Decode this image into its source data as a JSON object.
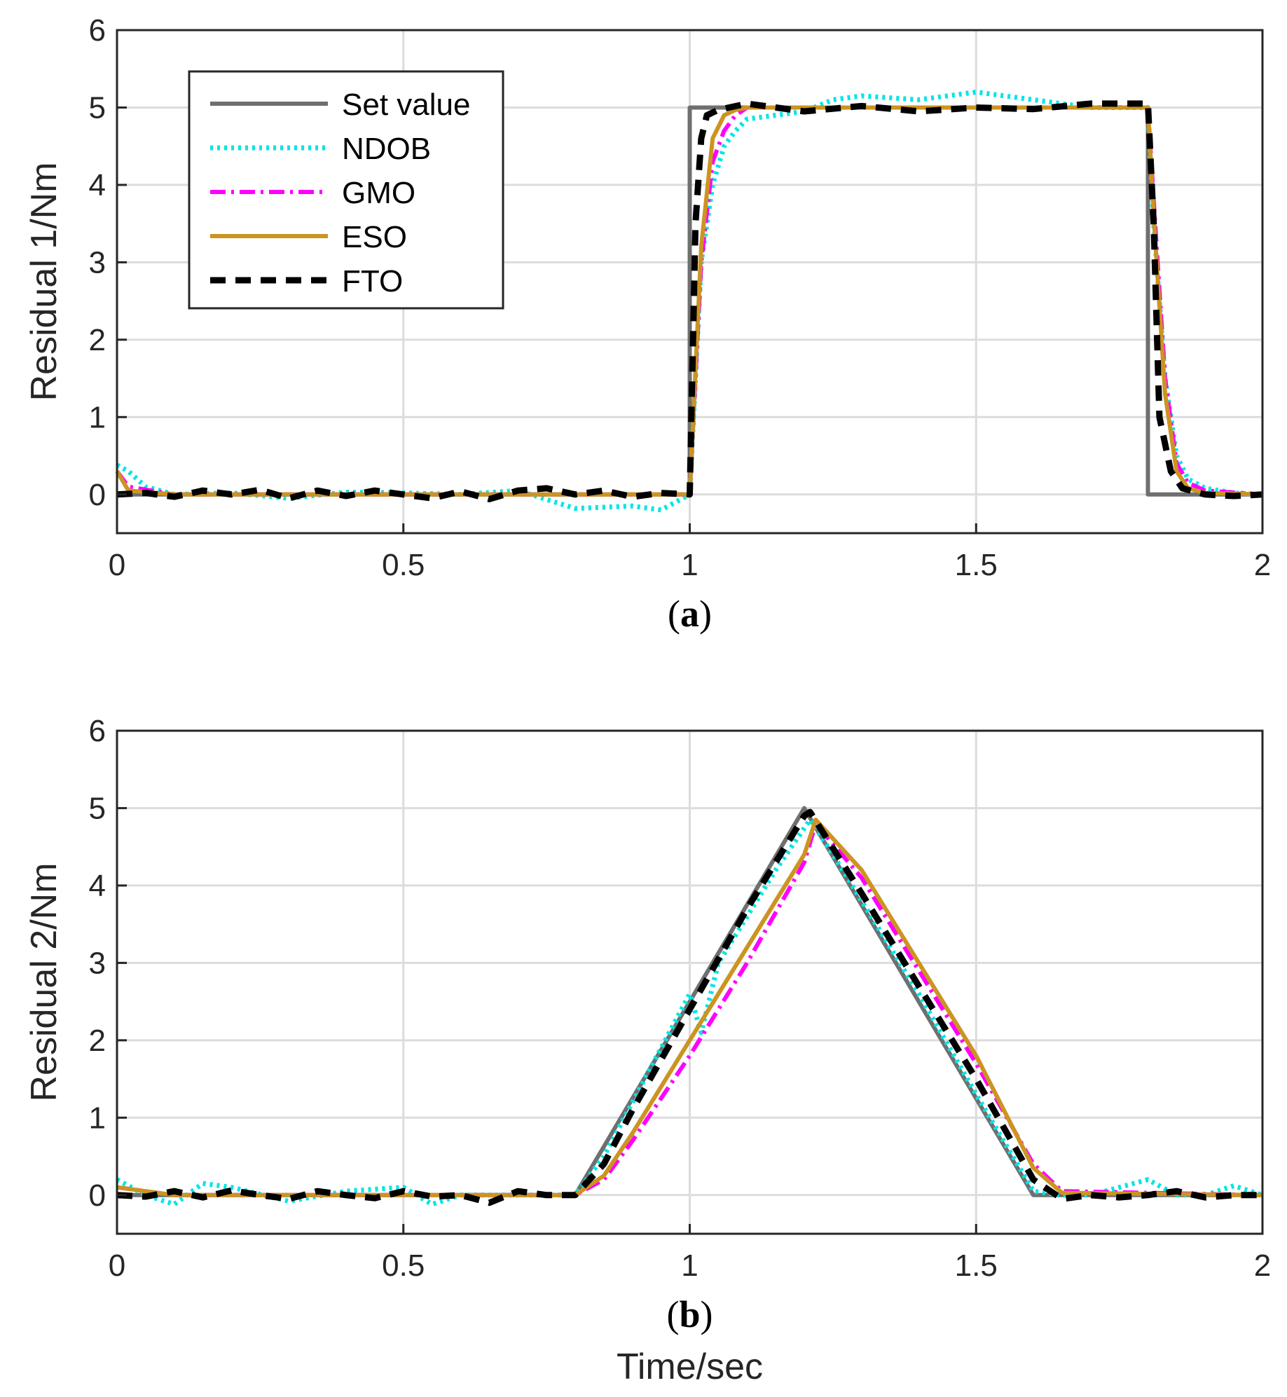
{
  "colors": {
    "set_value": "#6f6f6f",
    "ndob": "#00e5e5",
    "gmo": "#ff00ff",
    "eso": "#cc9420",
    "fto": "#000000",
    "grid": "#dcdcdc",
    "axis": "#262626"
  },
  "chart_data": [
    {
      "type": "line",
      "caption": {
        "open": "(",
        "letter": "a",
        "close": ")"
      },
      "xlabel": "",
      "ylabel": "Residual 1/Nm",
      "xlim": [
        0,
        2
      ],
      "ylim": [
        -0.5,
        6
      ],
      "xticks": [
        0,
        0.5,
        1,
        1.5,
        2
      ],
      "xtick_labels": [
        "0",
        "0.5",
        "1",
        "1.5",
        "2"
      ],
      "yticks": [
        0,
        1,
        2,
        3,
        4,
        5,
        6
      ],
      "ytick_labels": [
        "0",
        "1",
        "2",
        "3",
        "4",
        "5",
        "6"
      ],
      "grid": true,
      "legend": {
        "placement": "top-left",
        "entries": [
          "Set value",
          "NDOB",
          "GMO",
          "ESO",
          "FTO"
        ]
      },
      "series": [
        {
          "name": "Set value",
          "style": "solid",
          "color_key": "set_value",
          "x": [
            0,
            1.0,
            1.0,
            1.8,
            1.8,
            2.0
          ],
          "y": [
            0,
            0,
            5,
            5,
            0,
            0
          ]
        },
        {
          "name": "NDOB",
          "style": "dotted",
          "color_key": "ndob",
          "x": [
            0,
            0.02,
            0.05,
            0.1,
            0.2,
            0.3,
            0.4,
            0.5,
            0.6,
            0.7,
            0.8,
            0.9,
            0.95,
            1.0,
            1.02,
            1.04,
            1.06,
            1.08,
            1.1,
            1.15,
            1.2,
            1.25,
            1.3,
            1.4,
            1.5,
            1.6,
            1.7,
            1.8,
            1.81,
            1.83,
            1.85,
            1.87,
            1.9,
            1.95,
            2.0
          ],
          "y": [
            0.38,
            0.3,
            0.1,
            0.0,
            0.02,
            -0.05,
            0.03,
            0.02,
            0.0,
            0.05,
            -0.18,
            -0.15,
            -0.2,
            0.0,
            3.0,
            4.0,
            4.5,
            4.7,
            4.85,
            4.9,
            4.95,
            5.1,
            5.15,
            5.1,
            5.2,
            5.1,
            5.0,
            5.0,
            3.5,
            1.5,
            0.5,
            0.2,
            0.08,
            0.02,
            0.0
          ]
        },
        {
          "name": "GMO",
          "style": "dashdot",
          "color_key": "gmo",
          "x": [
            0,
            0.02,
            0.1,
            0.5,
            0.9,
            1.0,
            1.02,
            1.04,
            1.06,
            1.08,
            1.1,
            1.2,
            1.5,
            1.8,
            1.81,
            1.83,
            1.85,
            1.87,
            1.9,
            2.0
          ],
          "y": [
            0.3,
            0.1,
            0.0,
            0.0,
            0.0,
            0.0,
            3.0,
            4.3,
            4.7,
            4.9,
            5.0,
            5.0,
            5.0,
            5.0,
            3.8,
            1.5,
            0.4,
            0.15,
            0.05,
            0.0
          ]
        },
        {
          "name": "ESO",
          "style": "solid",
          "color_key": "eso",
          "x": [
            0,
            0.02,
            0.1,
            0.5,
            0.9,
            1.0,
            1.02,
            1.04,
            1.06,
            1.08,
            1.1,
            1.2,
            1.5,
            1.8,
            1.81,
            1.83,
            1.85,
            1.87,
            1.9,
            2.0
          ],
          "y": [
            0.3,
            0.05,
            0.0,
            0.0,
            0.0,
            0.0,
            3.2,
            4.6,
            4.9,
            4.97,
            5.0,
            5.0,
            5.0,
            5.0,
            3.6,
            1.3,
            0.3,
            0.08,
            0.02,
            0.0
          ]
        },
        {
          "name": "FTO",
          "style": "dashed",
          "color_key": "fto",
          "x": [
            0,
            0.05,
            0.1,
            0.15,
            0.2,
            0.25,
            0.3,
            0.35,
            0.4,
            0.45,
            0.5,
            0.55,
            0.6,
            0.65,
            0.7,
            0.75,
            0.8,
            0.85,
            0.9,
            0.95,
            1.0,
            1.01,
            1.02,
            1.03,
            1.05,
            1.1,
            1.2,
            1.3,
            1.4,
            1.5,
            1.6,
            1.7,
            1.8,
            1.81,
            1.82,
            1.84,
            1.86,
            1.9,
            1.95,
            2.0
          ],
          "y": [
            0.0,
            0.02,
            -0.03,
            0.05,
            0.0,
            0.06,
            -0.05,
            0.05,
            -0.02,
            0.05,
            0.0,
            -0.05,
            0.04,
            -0.06,
            0.05,
            0.08,
            0.0,
            0.05,
            -0.03,
            0.02,
            0.0,
            3.5,
            4.6,
            4.9,
            4.97,
            5.05,
            4.95,
            5.02,
            4.95,
            5.0,
            4.98,
            5.05,
            5.05,
            3.5,
            1.0,
            0.3,
            0.08,
            0.0,
            -0.02,
            0.0
          ]
        }
      ]
    },
    {
      "type": "line",
      "caption": {
        "open": "(",
        "letter": "b",
        "close": ")"
      },
      "xlabel": "Time/sec",
      "ylabel": "Residual 2/Nm",
      "xlim": [
        0,
        2
      ],
      "ylim": [
        -0.5,
        6
      ],
      "xticks": [
        0,
        0.5,
        1,
        1.5,
        2
      ],
      "xtick_labels": [
        "0",
        "0.5",
        "1",
        "1.5",
        "2"
      ],
      "yticks": [
        0,
        1,
        2,
        3,
        4,
        5,
        6
      ],
      "ytick_labels": [
        "0",
        "1",
        "2",
        "3",
        "4",
        "5",
        "6"
      ],
      "grid": true,
      "series": [
        {
          "name": "Set value",
          "style": "solid",
          "color_key": "set_value",
          "x": [
            0,
            0.8,
            1.2,
            1.6,
            2.0
          ],
          "y": [
            0,
            0,
            5,
            0,
            0
          ]
        },
        {
          "name": "NDOB",
          "style": "dotted",
          "color_key": "ndob",
          "x": [
            0,
            0.05,
            0.1,
            0.15,
            0.2,
            0.3,
            0.4,
            0.5,
            0.55,
            0.6,
            0.7,
            0.8,
            0.85,
            0.9,
            0.95,
            1.0,
            1.02,
            1.05,
            1.1,
            1.15,
            1.21,
            1.25,
            1.3,
            1.4,
            1.5,
            1.6,
            1.65,
            1.7,
            1.8,
            1.85,
            1.9,
            1.95,
            2.0
          ],
          "y": [
            0.2,
            0.0,
            -0.12,
            0.15,
            0.1,
            -0.08,
            0.05,
            0.1,
            -0.12,
            0.0,
            0.0,
            0.0,
            0.5,
            1.2,
            1.9,
            2.6,
            2.1,
            3.0,
            3.6,
            4.2,
            4.85,
            4.4,
            3.8,
            2.6,
            1.3,
            0.05,
            0.0,
            0.0,
            0.2,
            0.0,
            0.0,
            0.12,
            0.0
          ]
        },
        {
          "name": "GMO",
          "style": "dashdot",
          "color_key": "gmo",
          "x": [
            0,
            0.1,
            0.5,
            0.8,
            0.85,
            0.9,
            1.0,
            1.1,
            1.2,
            1.22,
            1.3,
            1.4,
            1.5,
            1.6,
            1.65,
            2.0
          ],
          "y": [
            0.1,
            0.0,
            0.0,
            0.0,
            0.2,
            0.7,
            1.8,
            3.0,
            4.3,
            4.8,
            4.1,
            2.9,
            1.7,
            0.4,
            0.05,
            0.0
          ]
        },
        {
          "name": "ESO",
          "style": "solid",
          "color_key": "eso",
          "x": [
            0,
            0.1,
            0.5,
            0.8,
            0.85,
            0.9,
            1.0,
            1.1,
            1.2,
            1.22,
            1.3,
            1.4,
            1.5,
            1.6,
            1.65,
            2.0
          ],
          "y": [
            0.1,
            0.0,
            0.0,
            0.0,
            0.25,
            0.8,
            2.0,
            3.2,
            4.4,
            4.85,
            4.2,
            3.0,
            1.8,
            0.35,
            0.03,
            0.0
          ]
        },
        {
          "name": "FTO",
          "style": "dashed",
          "color_key": "fto",
          "x": [
            0,
            0.05,
            0.1,
            0.15,
            0.2,
            0.25,
            0.3,
            0.35,
            0.4,
            0.45,
            0.5,
            0.55,
            0.6,
            0.65,
            0.7,
            0.75,
            0.8,
            0.85,
            0.9,
            1.0,
            1.1,
            1.2,
            1.21,
            1.3,
            1.4,
            1.5,
            1.6,
            1.65,
            1.7,
            1.75,
            1.8,
            1.85,
            1.9,
            1.95,
            2.0
          ],
          "y": [
            0.0,
            -0.02,
            0.05,
            -0.03,
            0.06,
            0.0,
            -0.05,
            0.05,
            0.0,
            -0.04,
            0.05,
            -0.02,
            0.0,
            -0.1,
            0.05,
            0.0,
            0.0,
            0.4,
            1.1,
            2.4,
            3.7,
            4.9,
            4.95,
            3.9,
            2.7,
            1.5,
            0.2,
            -0.05,
            0.0,
            -0.03,
            0.0,
            0.05,
            -0.03,
            0.0,
            0.0
          ]
        }
      ]
    }
  ]
}
